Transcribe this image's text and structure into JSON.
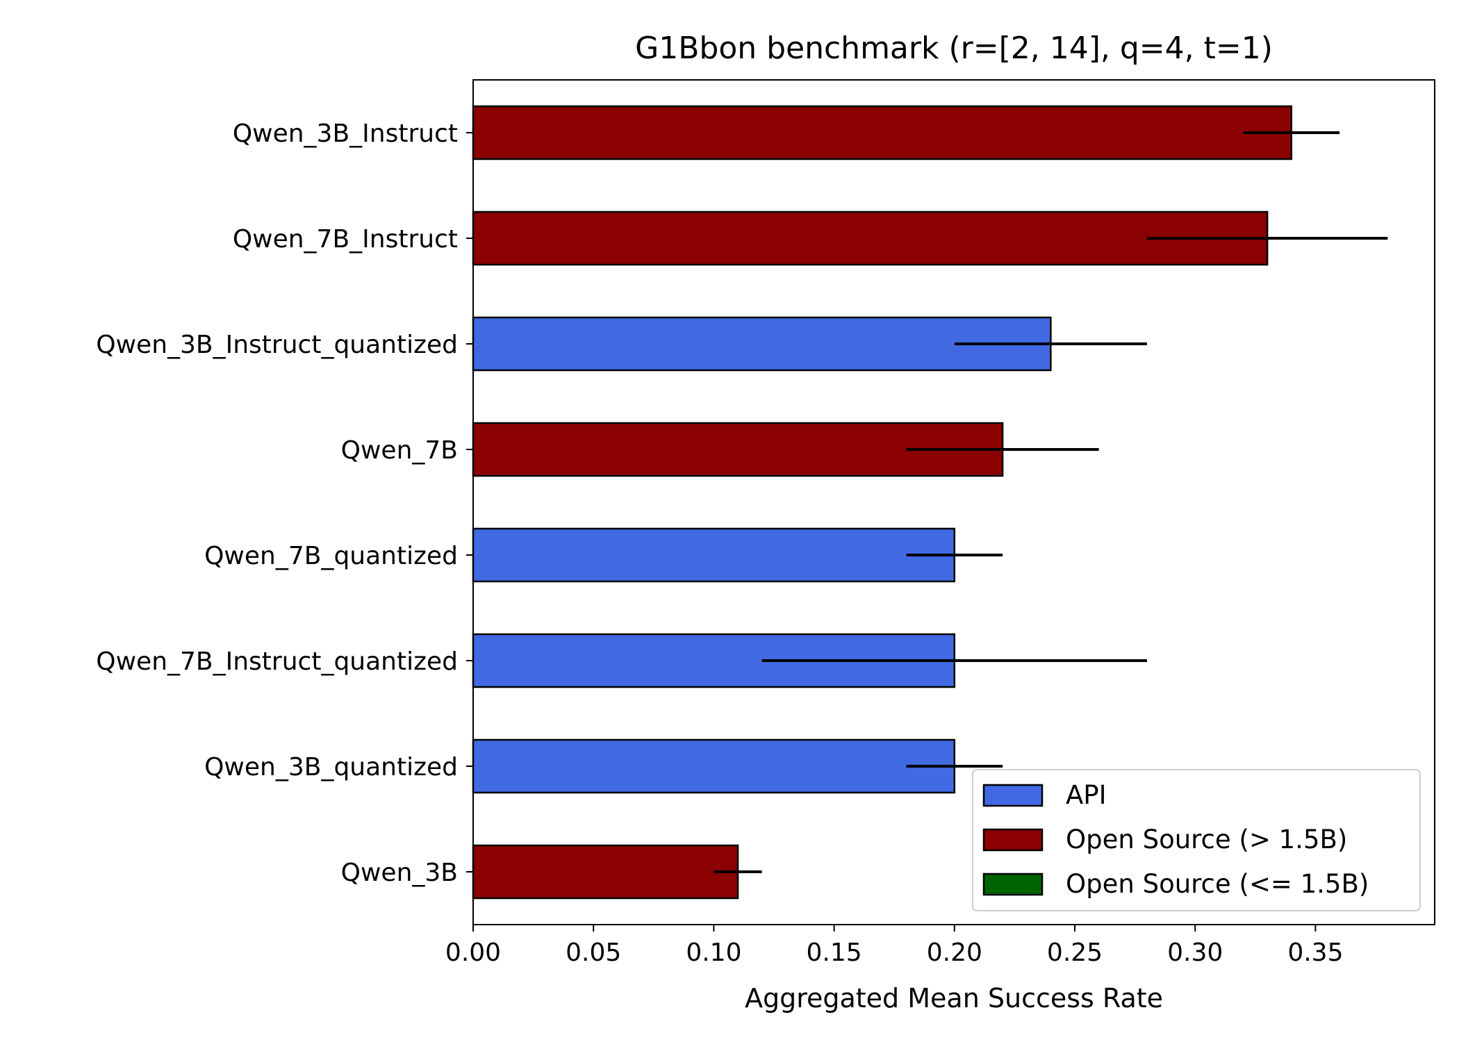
{
  "chart_data": {
    "type": "bar",
    "orientation": "horizontal",
    "title": "G1Bbon benchmark (r=[2, 14], q=4, t=1)",
    "xlabel": "Aggregated Mean Success Rate",
    "ylabel": "",
    "xlim": [
      0,
      0.4
    ],
    "xticks": [
      "0.00",
      "0.05",
      "0.10",
      "0.15",
      "0.20",
      "0.25",
      "0.30",
      "0.35"
    ],
    "grid": false,
    "legend_position": "bottom-right",
    "legend": [
      {
        "label": "API",
        "color": "#4169E1"
      },
      {
        "label": "Open Source (> 1.5B)",
        "color": "#8B0000"
      },
      {
        "label": "Open Source (<= 1.5B)",
        "color": "#006400"
      }
    ],
    "bars": [
      {
        "category": "Qwen_3B_Instruct",
        "value": 0.34,
        "err_low": 0.32,
        "err_high": 0.36,
        "group": "Open Source (> 1.5B)"
      },
      {
        "category": "Qwen_7B_Instruct",
        "value": 0.33,
        "err_low": 0.28,
        "err_high": 0.38,
        "group": "Open Source (> 1.5B)"
      },
      {
        "category": "Qwen_3B_Instruct_quantized",
        "value": 0.24,
        "err_low": 0.2,
        "err_high": 0.28,
        "group": "API"
      },
      {
        "category": "Qwen_7B",
        "value": 0.22,
        "err_low": 0.18,
        "err_high": 0.26,
        "group": "Open Source (> 1.5B)"
      },
      {
        "category": "Qwen_7B_quantized",
        "value": 0.2,
        "err_low": 0.18,
        "err_high": 0.22,
        "group": "API"
      },
      {
        "category": "Qwen_7B_Instruct_quantized",
        "value": 0.2,
        "err_low": 0.12,
        "err_high": 0.28,
        "group": "API"
      },
      {
        "category": "Qwen_3B_quantized",
        "value": 0.2,
        "err_low": 0.18,
        "err_high": 0.22,
        "group": "API"
      },
      {
        "category": "Qwen_3B",
        "value": 0.11,
        "err_low": 0.1,
        "err_high": 0.12,
        "group": "Open Source (> 1.5B)"
      }
    ]
  }
}
